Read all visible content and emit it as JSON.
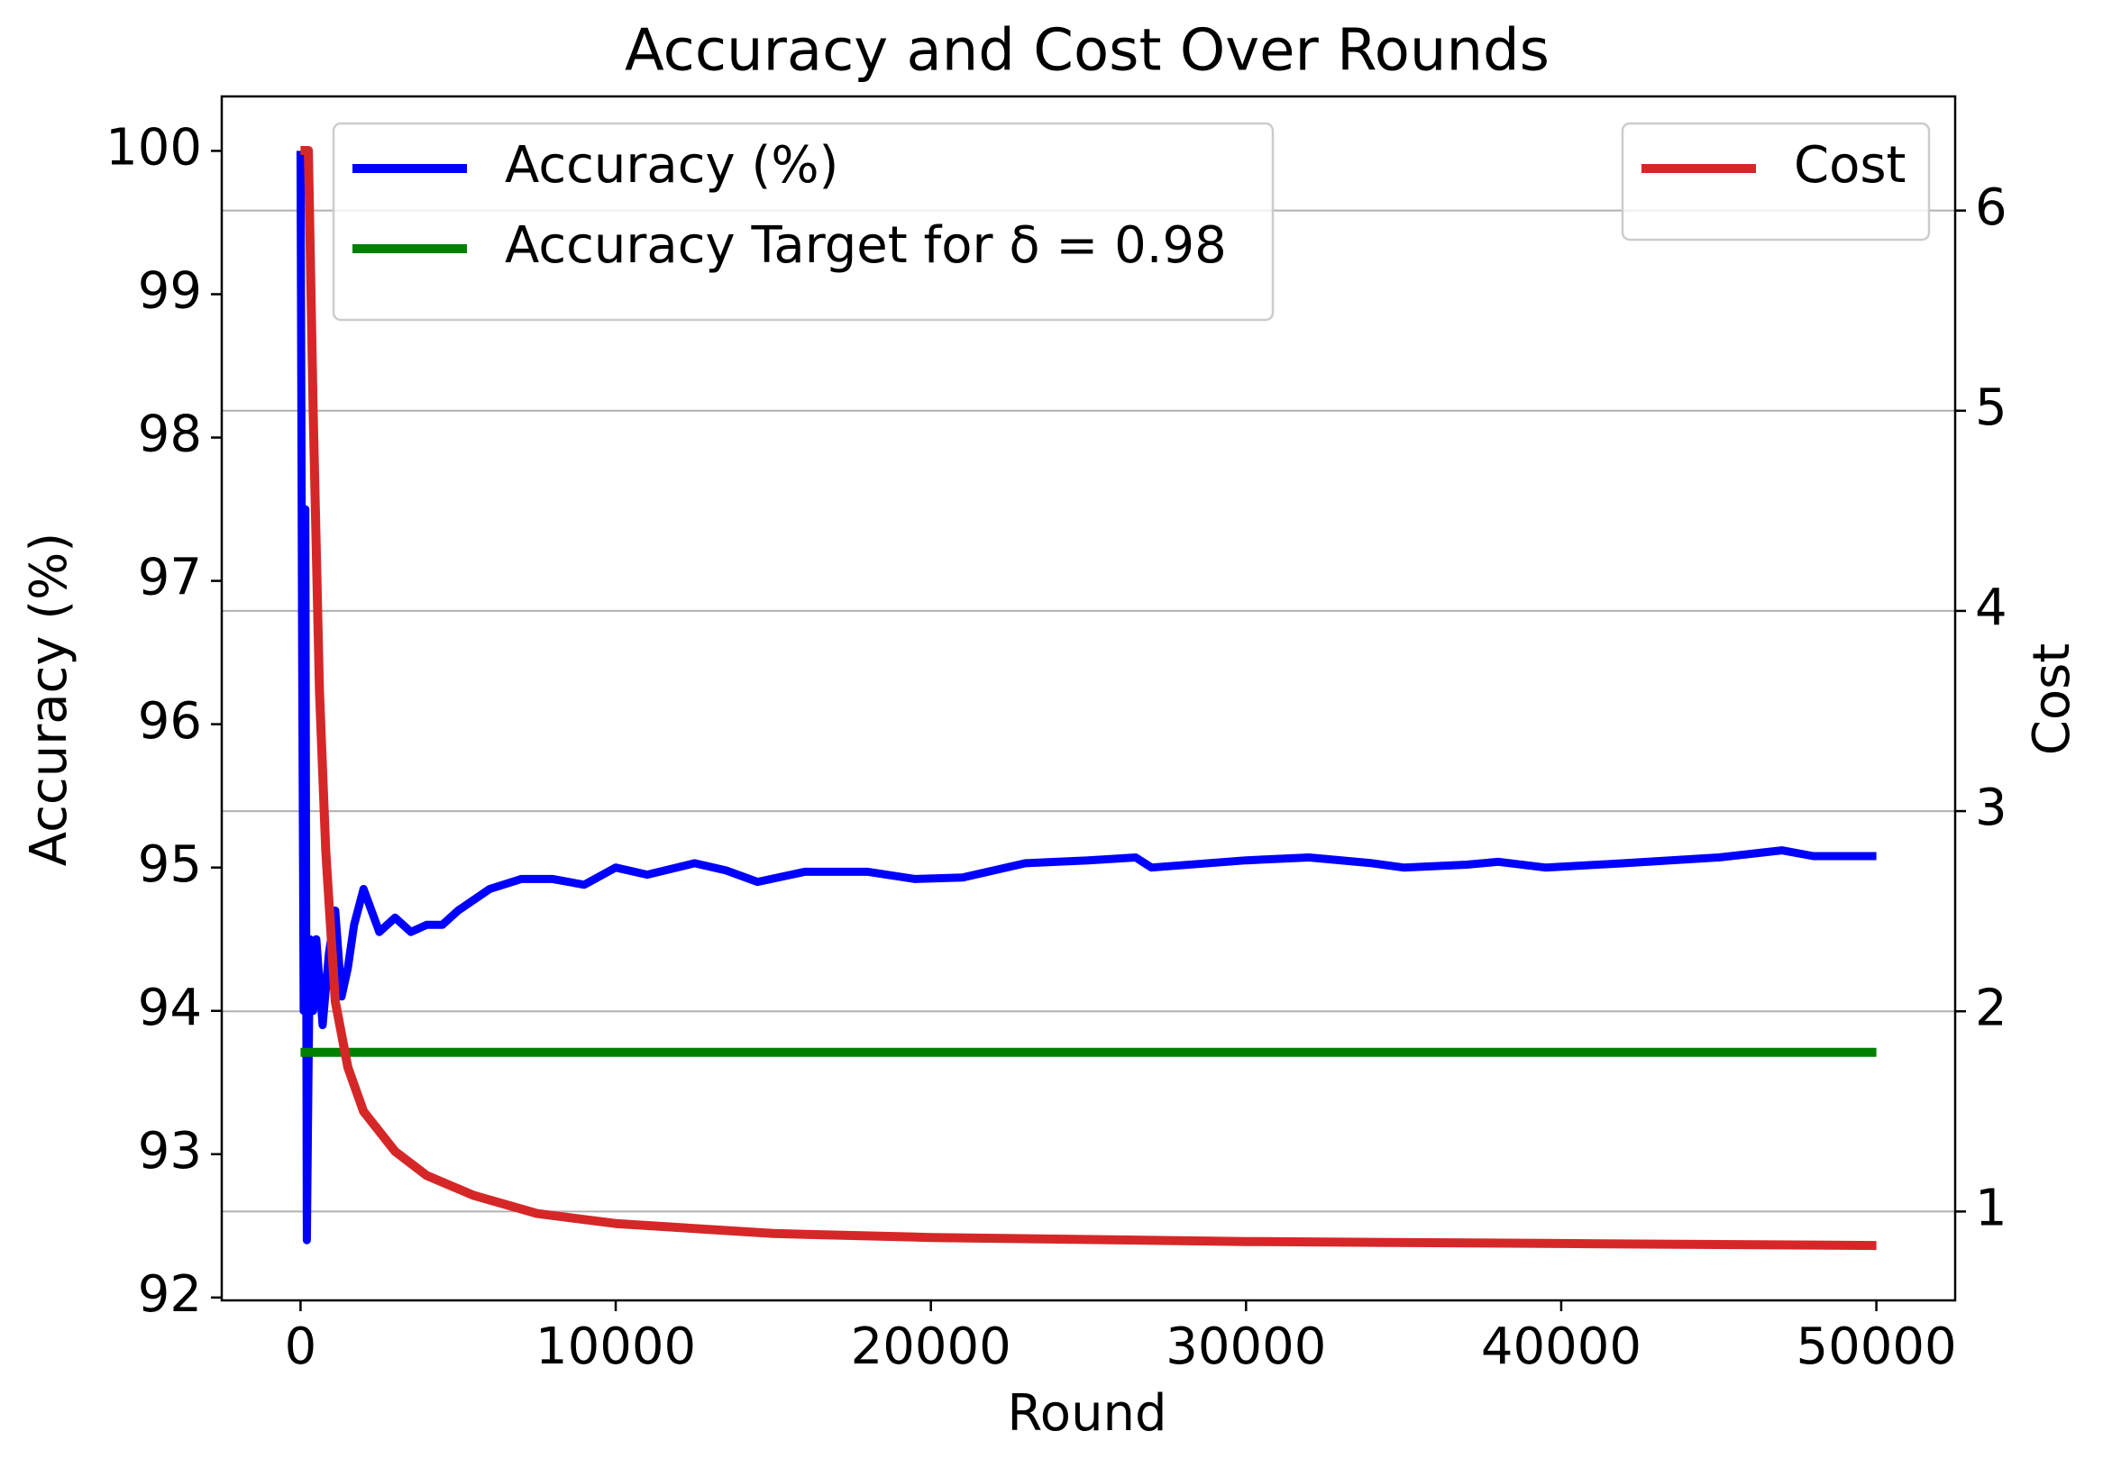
{
  "chart_data": {
    "type": "line",
    "title": "Accuracy and Cost Over Rounds",
    "xlabel": "Round",
    "ylabel": "Accuracy (%)",
    "y2label": "Cost",
    "xlim": [
      -2500,
      52500
    ],
    "ylim": [
      91.98,
      100.38
    ],
    "y2lim": [
      0.556,
      6.57
    ],
    "xticks": [
      0,
      10000,
      20000,
      30000,
      40000,
      50000
    ],
    "yticks": [
      92,
      93,
      94,
      95,
      96,
      97,
      98,
      99,
      100
    ],
    "y2ticks": [
      1,
      2,
      3,
      4,
      5,
      6
    ],
    "grid": "y2",
    "ylabel_color": "#0000ff",
    "y2label_color": "#d62728",
    "legend": "upper left",
    "legend2": "upper right",
    "series": [
      {
        "name": "Accuracy (%)",
        "color": "#0000ff",
        "axis": "y",
        "x": [
          0,
          50,
          100,
          150,
          200,
          250,
          300,
          400,
          500,
          700,
          900,
          1100,
          1300,
          1500,
          1700,
          2000,
          2500,
          3000,
          3500,
          4000,
          4500,
          5000,
          6000,
          7000,
          8000,
          9000,
          10000,
          11000,
          12500,
          13500,
          14500,
          16000,
          18000,
          19500,
          21000,
          23000,
          25000,
          26500,
          27000,
          30000,
          32000,
          34000,
          35000,
          37000,
          38000,
          39500,
          42000,
          45000,
          47000,
          48000,
          50000
        ],
        "values": [
          100,
          96.5,
          94.0,
          97.5,
          92.4,
          93.5,
          94.5,
          94.0,
          94.5,
          93.9,
          94.4,
          94.7,
          94.1,
          94.3,
          94.6,
          94.85,
          94.55,
          94.65,
          94.55,
          94.6,
          94.6,
          94.7,
          94.85,
          94.92,
          94.92,
          94.88,
          95.0,
          94.95,
          95.03,
          94.98,
          94.9,
          94.97,
          94.97,
          94.92,
          94.93,
          95.03,
          95.05,
          95.07,
          95.0,
          95.05,
          95.07,
          95.03,
          95.0,
          95.02,
          95.04,
          95.0,
          95.03,
          95.07,
          95.12,
          95.08,
          95.08
        ]
      },
      {
        "name": "Accuracy Target for δ = 0.98",
        "color": "#008000",
        "axis": "y",
        "x": [
          0,
          50000
        ],
        "values": [
          93.71,
          93.71
        ]
      },
      {
        "name": "Cost",
        "color": "#d62728",
        "axis": "y2",
        "x": [
          0,
          100,
          250,
          400,
          600,
          800,
          1100,
          1500,
          2000,
          3000,
          4000,
          5500,
          7500,
          10000,
          15000,
          20000,
          30000,
          40000,
          50000
        ],
        "values": [
          6.3,
          6.3,
          6.3,
          5.0,
          3.6,
          2.8,
          2.05,
          1.72,
          1.5,
          1.3,
          1.18,
          1.08,
          0.99,
          0.94,
          0.89,
          0.87,
          0.85,
          0.84,
          0.83
        ]
      }
    ]
  }
}
